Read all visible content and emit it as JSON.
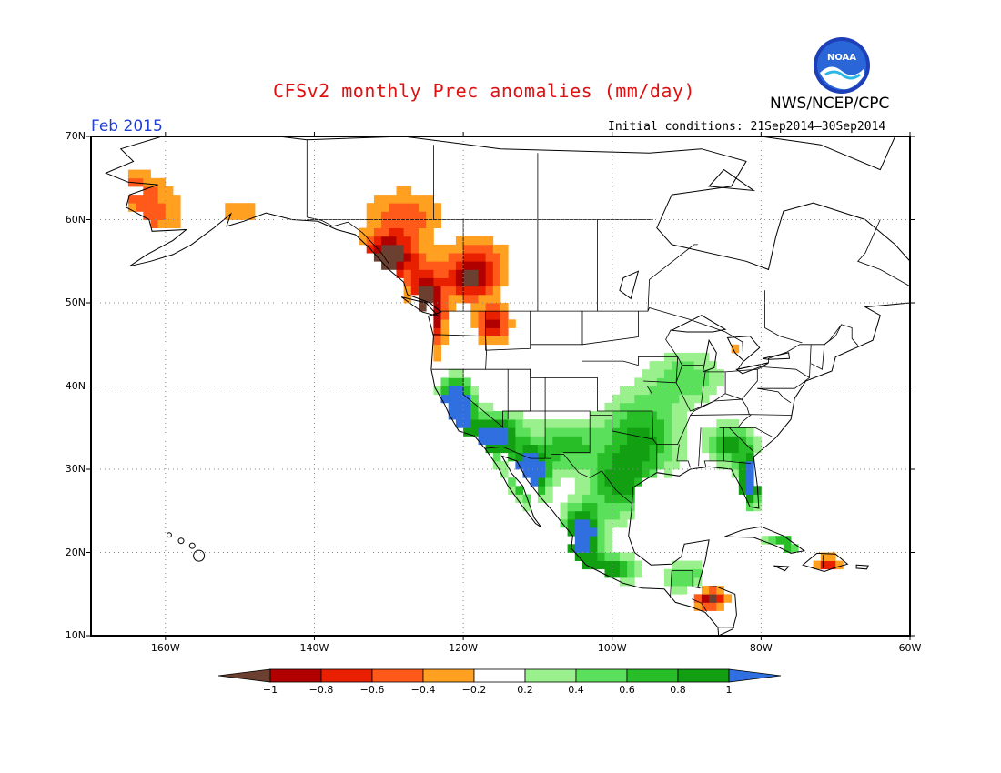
{
  "header": {
    "title": "CFSv2 monthly Prec anomalies (mm/day)",
    "agency": "NWS/NCEP/CPC",
    "month": "Feb 2015",
    "initial_conditions": "Initial conditions: 21Sep2014—30Sep2014",
    "logo_text": "NOAA"
  },
  "map": {
    "lat_labels": [
      "70N",
      "60N",
      "50N",
      "40N",
      "30N",
      "20N",
      "10N"
    ],
    "lon_labels": [
      "160W",
      "140W",
      "120W",
      "100W",
      "80W",
      "60W"
    ],
    "lat_range": [
      10,
      70
    ],
    "lon_range": [
      -170,
      -60
    ],
    "grid": "dotted",
    "anomaly_regions": [
      {
        "name": "pacific-northwest-coast",
        "value": -1.0
      },
      {
        "name": "british-columbia-interior",
        "value": -0.8
      },
      {
        "name": "alaska-southwest",
        "value": -0.3
      },
      {
        "name": "california-coast",
        "value": 1.0
      },
      {
        "name": "baja-and-west-mexico",
        "value": 1.0
      },
      {
        "name": "southern-plains",
        "value": 0.8
      },
      {
        "name": "florida",
        "value": 1.0
      },
      {
        "name": "central-america",
        "value": -0.6
      },
      {
        "name": "hispaniola",
        "value": -0.6
      }
    ]
  },
  "colorbar": {
    "labels": [
      "−1",
      "−0.8",
      "−0.6",
      "−0.4",
      "−0.2",
      "0.2",
      "0.4",
      "0.6",
      "0.8",
      "1"
    ],
    "colors": [
      "#6b4030",
      "#b00000",
      "#e82000",
      "#ff5a1a",
      "#ffa020",
      "#ffffff",
      "#9af08c",
      "#5ae05a",
      "#28be28",
      "#12a012",
      "#2f6fe0"
    ]
  }
}
